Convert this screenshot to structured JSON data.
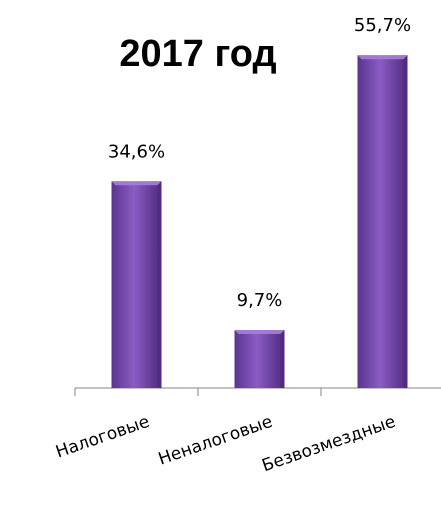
{
  "chart_data": {
    "type": "bar",
    "title": "2017 год",
    "categories": [
      "Налоговые",
      "Неналоговые",
      "Безвозмездные"
    ],
    "values": [
      34.6,
      9.7,
      55.7
    ],
    "data_labels": [
      "34,6%",
      "9,7%",
      "55,7%"
    ],
    "unit": "%",
    "ylim": [
      0,
      60
    ],
    "grid": false,
    "legend": "none",
    "colors": {
      "bar": "#7b4bb0",
      "bar_light": "#a77fd6",
      "bar_dark": "#4f2a7e",
      "axis": "#868686"
    }
  }
}
